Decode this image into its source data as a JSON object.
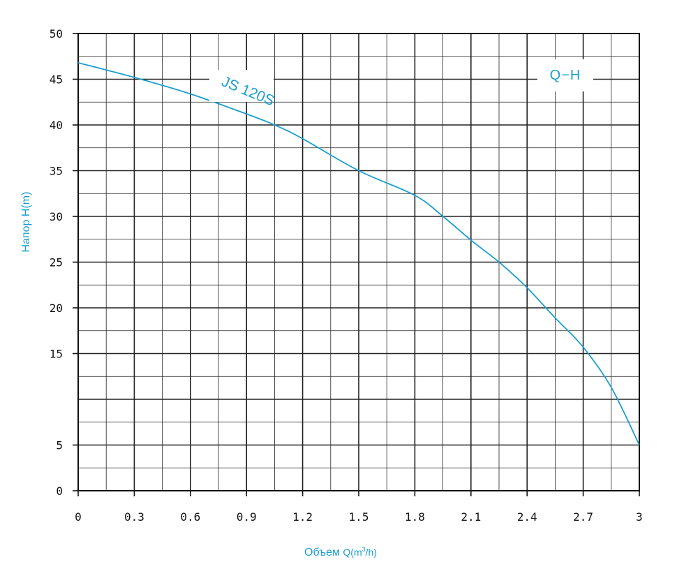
{
  "chart_data": {
    "type": "line",
    "title": "",
    "xlabel_prefix": "Объем ",
    "xlabel_symbol": "Q(m",
    "xlabel_sup": "3",
    "xlabel_suffix": "/h)",
    "ylabel": "Напор H(m)",
    "xlim": [
      0,
      3
    ],
    "ylim": [
      0,
      50
    ],
    "x_ticks": [
      "0",
      "0.3",
      "0.6",
      "0.9",
      "1.2",
      "1.5",
      "1.8",
      "2.1",
      "2.4",
      "2.7",
      "3"
    ],
    "y_ticks": [
      "0",
      "5",
      "15",
      "20",
      "25",
      "30",
      "35",
      "40",
      "45",
      "50"
    ],
    "y_tick_values": [
      0,
      5,
      15,
      20,
      25,
      30,
      35,
      40,
      45,
      50
    ],
    "grid": true,
    "legend_label": "Q−H",
    "legend_position": "top-right",
    "line_color": "#1a9fd0",
    "series": [
      {
        "name": "JS 120S",
        "x": [
          0,
          0.3,
          0.6,
          0.9,
          1.05,
          1.2,
          1.5,
          1.8,
          1.95,
          2.1,
          2.25,
          2.4,
          2.55,
          2.7,
          2.85,
          3.0
        ],
        "y": [
          46.8,
          45.2,
          43.4,
          41.2,
          40.0,
          38.5,
          35.0,
          32.3,
          30.0,
          27.4,
          25.0,
          22.2,
          18.9,
          15.7,
          11.3,
          5.0
        ]
      }
    ]
  }
}
